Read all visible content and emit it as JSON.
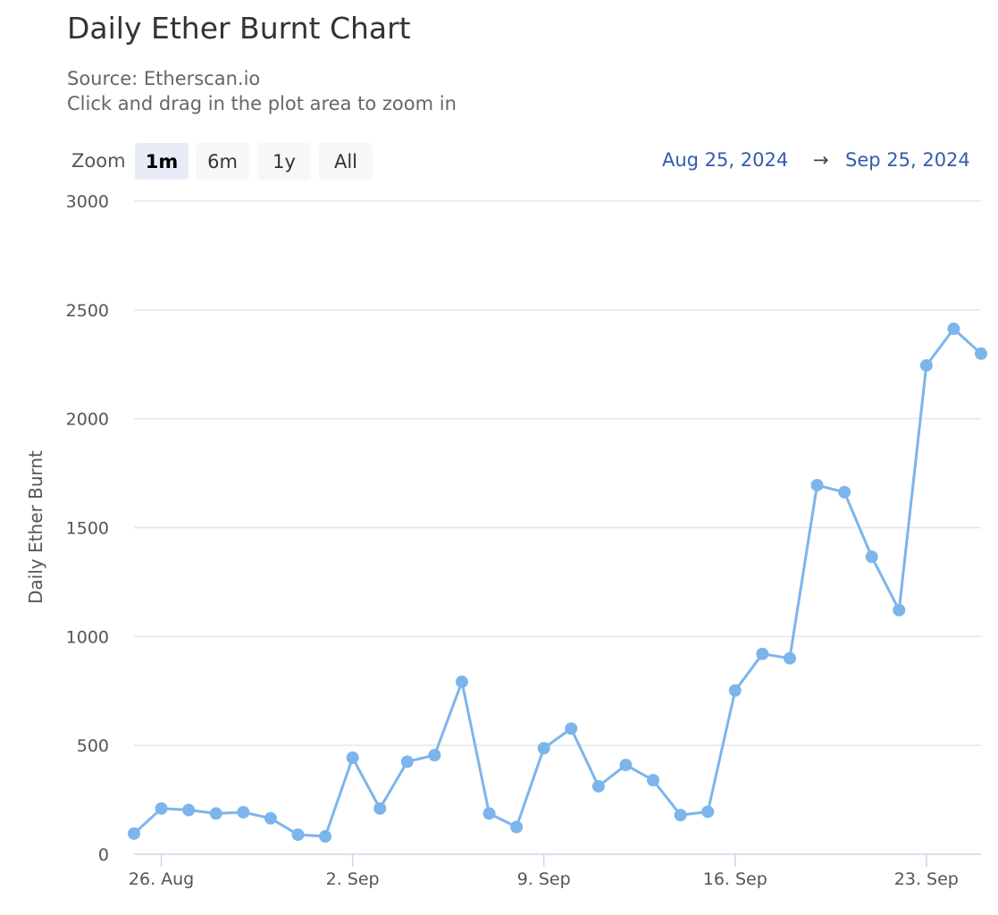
{
  "header": {
    "title": "Daily Ether Burnt Chart",
    "source": "Source: Etherscan.io",
    "hint": "Click and drag in the plot area to zoom in"
  },
  "zoom": {
    "label": "Zoom",
    "buttons": [
      "1m",
      "6m",
      "1y",
      "All"
    ],
    "selected": "1m"
  },
  "range": {
    "from": "Aug 25, 2024",
    "arrow": "→",
    "to": "Sep 25, 2024"
  },
  "chart_data": {
    "type": "line",
    "ylabel": "Daily Ether Burnt",
    "xlabel": "",
    "ylim": [
      0,
      3000
    ],
    "yticks": [
      0,
      500,
      1000,
      1500,
      2000,
      2500,
      3000
    ],
    "xtick_labels": [
      "26. Aug",
      "2. Sep",
      "9. Sep",
      "16. Sep",
      "23. Sep"
    ],
    "xtick_dates": [
      "2024-08-26",
      "2024-09-02",
      "2024-09-09",
      "2024-09-16",
      "2024-09-23"
    ],
    "grid": true,
    "colors": {
      "series": "#7cb5ec",
      "grid": "#e6e6e6",
      "axis": "#ccd6eb"
    },
    "series": [
      {
        "x": [
          "2024-08-25",
          "2024-08-26",
          "2024-08-27",
          "2024-08-28",
          "2024-08-29",
          "2024-08-30",
          "2024-08-31",
          "2024-09-01",
          "2024-09-02",
          "2024-09-03",
          "2024-09-04",
          "2024-09-05",
          "2024-09-06",
          "2024-09-07",
          "2024-09-08",
          "2024-09-09",
          "2024-09-10",
          "2024-09-11",
          "2024-09-12",
          "2024-09-13",
          "2024-09-14",
          "2024-09-15",
          "2024-09-16",
          "2024-09-17",
          "2024-09-18",
          "2024-09-19",
          "2024-09-20",
          "2024-09-21",
          "2024-09-22",
          "2024-09-23",
          "2024-09-24",
          "2024-09-25"
        ],
        "values": [
          95,
          210,
          203,
          187,
          193,
          165,
          90,
          82,
          443,
          210,
          425,
          455,
          792,
          187,
          125,
          487,
          577,
          312,
          410,
          340,
          180,
          195,
          752,
          920,
          900,
          1695,
          1663,
          1366,
          1121,
          2245,
          2413,
          2299
        ]
      }
    ]
  }
}
